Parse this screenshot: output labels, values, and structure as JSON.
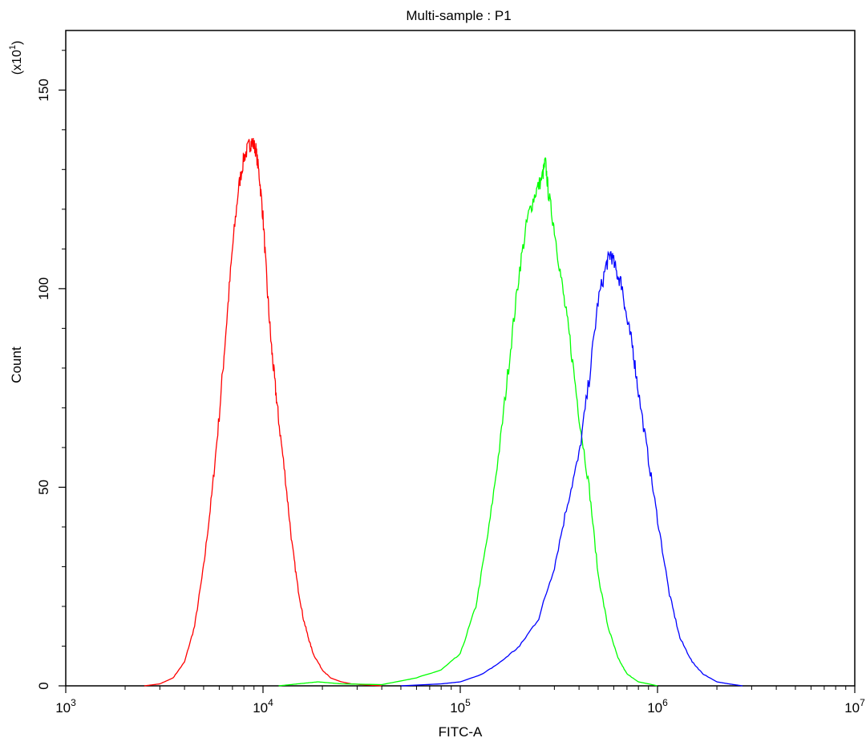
{
  "chart_data": {
    "type": "line",
    "title": "Multi-sample : P1",
    "xlabel": "FITC-A",
    "ylabel": "Count",
    "y_multiplier_label": "(x10",
    "y_multiplier_exp": "1",
    "x_scale": "log",
    "xlim": [
      1000,
      10000000
    ],
    "ylim": [
      0,
      165
    ],
    "x_ticks": [
      {
        "value": 1000,
        "base": "10",
        "exp": "3"
      },
      {
        "value": 10000,
        "base": "10",
        "exp": "4"
      },
      {
        "value": 100000,
        "base": "10",
        "exp": "5"
      },
      {
        "value": 1000000,
        "base": "10",
        "exp": "6"
      },
      {
        "value": 10000000,
        "base": "10",
        "exp": "7"
      }
    ],
    "y_ticks": [
      {
        "value": 0,
        "label": "0"
      },
      {
        "value": 50,
        "label": "50"
      },
      {
        "value": 100,
        "label": "100"
      },
      {
        "value": 150,
        "label": "150"
      }
    ],
    "grid": false,
    "legend": "none",
    "series": [
      {
        "color": "#ff0000",
        "x": [
          2500,
          3000,
          3500,
          4000,
          4500,
          5000,
          5500,
          6000,
          6500,
          7000,
          7500,
          8000,
          8500,
          8800,
          9200,
          9600,
          10000,
          10500,
          11000,
          11500,
          12000,
          13000,
          14000,
          15000,
          16000,
          17000,
          18000,
          20000,
          22000,
          25000,
          28000,
          32000,
          40000
        ],
        "y": [
          0,
          0.5,
          2,
          6,
          15,
          30,
          48,
          68,
          90,
          110,
          125,
          133,
          136,
          137,
          135,
          128,
          118,
          100,
          86,
          76,
          67,
          52,
          36,
          25,
          17,
          12,
          8,
          4,
          2,
          1,
          0.5,
          0.3,
          0
        ]
      },
      {
        "color": "#00ff00",
        "x": [
          12000,
          15000,
          19000,
          25000,
          40000,
          60000,
          80000,
          100000,
          120000,
          140000,
          160000,
          180000,
          200000,
          220000,
          240000,
          260000,
          270000,
          280000,
          300000,
          330000,
          360000,
          400000,
          450000,
          500000,
          560000,
          630000,
          700000,
          800000,
          900000,
          1000000
        ],
        "y": [
          0,
          0.5,
          1,
          0.5,
          0.3,
          2,
          4,
          8,
          20,
          40,
          62,
          85,
          105,
          118,
          124,
          128,
          132,
          124,
          115,
          100,
          87,
          68,
          50,
          28,
          15,
          7,
          3,
          1,
          0.5,
          0
        ]
      },
      {
        "color": "#0000ff",
        "x": [
          50000,
          80000,
          100000,
          130000,
          160000,
          200000,
          250000,
          300000,
          350000,
          400000,
          450000,
          500000,
          550000,
          580000,
          620000,
          660000,
          700000,
          750000,
          800000,
          900000,
          1000000,
          1150000,
          1300000,
          1500000,
          1700000,
          2000000,
          2300000,
          2700000
        ],
        "y": [
          0,
          0.5,
          1,
          3,
          6,
          10,
          17,
          30,
          46,
          58,
          77,
          97,
          106,
          109,
          104,
          101,
          92,
          85,
          74,
          57,
          42,
          23,
          12,
          6,
          3,
          1,
          0.5,
          0
        ]
      }
    ]
  }
}
